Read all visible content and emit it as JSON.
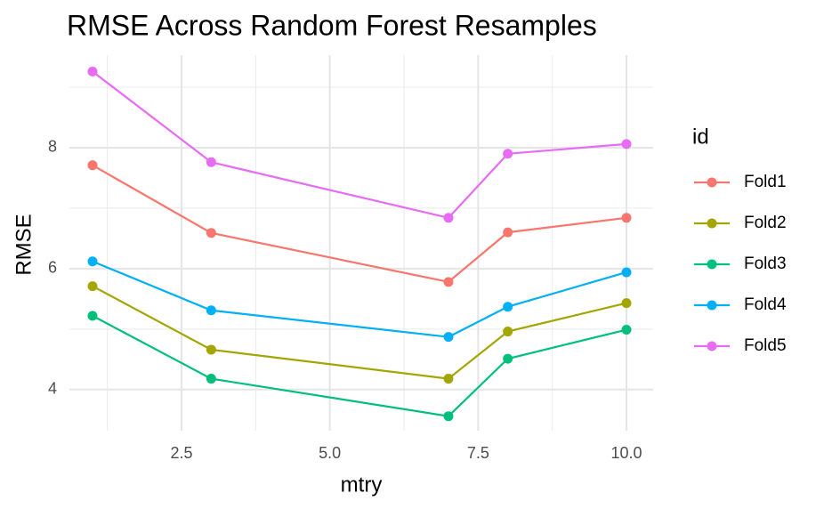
{
  "chart_data": {
    "type": "line",
    "title": "RMSE Across Random Forest Resamples",
    "x_label": "mtry",
    "y_label": "RMSE",
    "legend_title": "id",
    "x": [
      1,
      3,
      7,
      8,
      10
    ],
    "series": [
      {
        "name": "Fold1",
        "color": "#F8766D",
        "values": [
          7.71,
          6.59,
          5.78,
          6.6,
          6.84
        ]
      },
      {
        "name": "Fold2",
        "color": "#A3A500",
        "values": [
          5.71,
          4.66,
          4.18,
          4.96,
          5.43
        ]
      },
      {
        "name": "Fold3",
        "color": "#00BF7D",
        "values": [
          5.22,
          4.18,
          3.56,
          4.51,
          4.99
        ]
      },
      {
        "name": "Fold4",
        "color": "#00B0F6",
        "values": [
          6.12,
          5.31,
          4.87,
          5.37,
          5.94
        ]
      },
      {
        "name": "Fold5",
        "color": "#E76BF3",
        "values": [
          9.26,
          7.76,
          6.84,
          7.9,
          8.06
        ]
      }
    ],
    "xlim": [
      0.61,
      10.45
    ],
    "ylim": [
      3.32,
      9.53
    ],
    "xticks": [
      2.5,
      {
        "value": 5,
        "label": "5.0"
      },
      7.5,
      {
        "value": 10,
        "label": "10.0"
      }
    ],
    "yticks": [
      4,
      6,
      8
    ],
    "grid": true,
    "legend": "right"
  }
}
